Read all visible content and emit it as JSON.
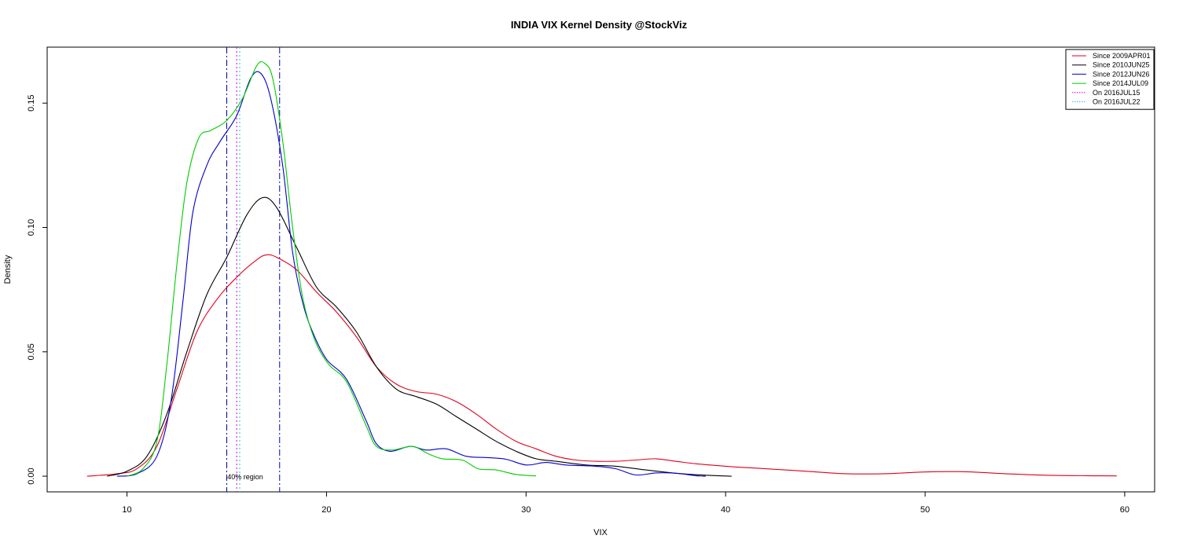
{
  "chart_data": {
    "type": "line",
    "title": "INDIA VIX Kernel Density @StockViz",
    "xlabel": "VIX",
    "ylabel": "Density",
    "xlim": [
      6,
      61.5
    ],
    "ylim": [
      -0.0063,
      0.1725
    ],
    "x_ticks": [
      10,
      20,
      30,
      40,
      50,
      60
    ],
    "x_tick_labels": [
      "10",
      "20",
      "30",
      "40",
      "50",
      "60"
    ],
    "y_ticks": [
      0,
      0.05,
      0.1,
      0.15
    ],
    "y_tick_labels": [
      "0.00",
      "0.05",
      "0.10",
      "0.15"
    ],
    "grid": false,
    "legend_position": "top-right",
    "series": [
      {
        "name": "Since 2009APR01",
        "color": "#e0001b",
        "dash": "solid",
        "points": [
          [
            8,
            0
          ],
          [
            9.5,
            0.001
          ],
          [
            10.5,
            0.003
          ],
          [
            11.5,
            0.012
          ],
          [
            12.5,
            0.035
          ],
          [
            13.5,
            0.058
          ],
          [
            14.5,
            0.071
          ],
          [
            15.5,
            0.08
          ],
          [
            16.5,
            0.087
          ],
          [
            17,
            0.089
          ],
          [
            17.5,
            0.088
          ],
          [
            18.5,
            0.083
          ],
          [
            19.5,
            0.074
          ],
          [
            20.5,
            0.066
          ],
          [
            21.5,
            0.056
          ],
          [
            22.5,
            0.044
          ],
          [
            23.5,
            0.037
          ],
          [
            24.5,
            0.034
          ],
          [
            25.5,
            0.033
          ],
          [
            26.5,
            0.03
          ],
          [
            27.5,
            0.025
          ],
          [
            28.5,
            0.019
          ],
          [
            29.5,
            0.014
          ],
          [
            30.5,
            0.011
          ],
          [
            31.5,
            0.008
          ],
          [
            32.5,
            0.0065
          ],
          [
            33.5,
            0.006
          ],
          [
            34.5,
            0.006
          ],
          [
            35.5,
            0.0065
          ],
          [
            36.5,
            0.007
          ],
          [
            37.5,
            0.006
          ],
          [
            38.5,
            0.005
          ],
          [
            40,
            0.004
          ],
          [
            42,
            0.003
          ],
          [
            44,
            0.002
          ],
          [
            46,
            0.001
          ],
          [
            48,
            0.001
          ],
          [
            50,
            0.0017
          ],
          [
            52,
            0.0018
          ],
          [
            54,
            0.001
          ],
          [
            56,
            0.0004
          ],
          [
            58,
            0.0002
          ],
          [
            59.6,
            0.0001
          ]
        ]
      },
      {
        "name": "Since 2010JUN25",
        "color": "#000000",
        "dash": "solid",
        "points": [
          [
            9,
            0
          ],
          [
            10,
            0.002
          ],
          [
            11,
            0.008
          ],
          [
            12,
            0.025
          ],
          [
            13,
            0.05
          ],
          [
            14,
            0.073
          ],
          [
            15,
            0.088
          ],
          [
            16,
            0.105
          ],
          [
            16.8,
            0.112
          ],
          [
            17.5,
            0.108
          ],
          [
            18.5,
            0.092
          ],
          [
            19.5,
            0.076
          ],
          [
            20.5,
            0.068
          ],
          [
            21.5,
            0.058
          ],
          [
            22.5,
            0.044
          ],
          [
            23.5,
            0.035
          ],
          [
            24.5,
            0.032
          ],
          [
            25.5,
            0.029
          ],
          [
            26.5,
            0.024
          ],
          [
            27.5,
            0.019
          ],
          [
            28.5,
            0.014
          ],
          [
            29.5,
            0.01
          ],
          [
            30.5,
            0.007
          ],
          [
            31.5,
            0.006
          ],
          [
            33,
            0.0045
          ],
          [
            34.5,
            0.004
          ],
          [
            36,
            0.0025
          ],
          [
            37.5,
            0.0012
          ],
          [
            39,
            0.0004
          ],
          [
            40.3,
            0
          ]
        ]
      },
      {
        "name": "Since 2012JUN26",
        "color": "#0000cc",
        "dash": "solid",
        "points": [
          [
            9.5,
            0
          ],
          [
            10.5,
            0.001
          ],
          [
            11.5,
            0.008
          ],
          [
            12.2,
            0.03
          ],
          [
            12.8,
            0.07
          ],
          [
            13.3,
            0.106
          ],
          [
            14,
            0.125
          ],
          [
            14.7,
            0.135
          ],
          [
            15.5,
            0.145
          ],
          [
            16.2,
            0.16
          ],
          [
            16.7,
            0.162
          ],
          [
            17.2,
            0.152
          ],
          [
            17.8,
            0.125
          ],
          [
            18.3,
            0.09
          ],
          [
            18.8,
            0.07
          ],
          [
            19.3,
            0.058
          ],
          [
            20,
            0.047
          ],
          [
            21,
            0.039
          ],
          [
            22,
            0.022
          ],
          [
            22.5,
            0.013
          ],
          [
            23.2,
            0.01
          ],
          [
            24.2,
            0.012
          ],
          [
            25,
            0.0105
          ],
          [
            26,
            0.011
          ],
          [
            27,
            0.008
          ],
          [
            28,
            0.0075
          ],
          [
            29,
            0.0068
          ],
          [
            30,
            0.0045
          ],
          [
            31,
            0.0055
          ],
          [
            32,
            0.0045
          ],
          [
            33.5,
            0.004
          ],
          [
            34.5,
            0.003
          ],
          [
            35.5,
            0.0005
          ],
          [
            36.5,
            0.0013
          ],
          [
            37.5,
            0.0012
          ],
          [
            38.5,
            0.0002
          ],
          [
            39,
            0
          ]
        ]
      },
      {
        "name": "Since 2014JUL09",
        "color": "#00cc00",
        "dash": "solid",
        "points": [
          [
            10,
            0
          ],
          [
            10.8,
            0.003
          ],
          [
            11.5,
            0.014
          ],
          [
            12,
            0.045
          ],
          [
            12.5,
            0.085
          ],
          [
            13,
            0.118
          ],
          [
            13.6,
            0.136
          ],
          [
            14.2,
            0.139
          ],
          [
            15,
            0.143
          ],
          [
            15.8,
            0.152
          ],
          [
            16.5,
            0.165
          ],
          [
            16.9,
            0.166
          ],
          [
            17.3,
            0.16
          ],
          [
            17.8,
            0.135
          ],
          [
            18.3,
            0.1
          ],
          [
            18.8,
            0.072
          ],
          [
            19.4,
            0.055
          ],
          [
            20.1,
            0.045
          ],
          [
            21,
            0.038
          ],
          [
            22,
            0.02
          ],
          [
            22.5,
            0.012
          ],
          [
            23.3,
            0.0105
          ],
          [
            24.3,
            0.012
          ],
          [
            25.1,
            0.009
          ],
          [
            25.8,
            0.007
          ],
          [
            26.8,
            0.0065
          ],
          [
            27.6,
            0.003
          ],
          [
            28.5,
            0.0025
          ],
          [
            29.5,
            0.0007
          ],
          [
            30.5,
            0.0001
          ]
        ]
      }
    ],
    "vlines": [
      {
        "x": 15.0,
        "color": "#000080",
        "dash": "dashdot"
      },
      {
        "x": 17.65,
        "color": "#0000cc",
        "dash": "dashdot"
      },
      {
        "x": 15.5,
        "color": "#cc00cc",
        "dash": "dotted"
      },
      {
        "x": 15.65,
        "color": "#33bbee",
        "dash": "dotted"
      }
    ],
    "legend": [
      {
        "label": "Since 2009APR01",
        "color": "#e0001b",
        "dash": "solid"
      },
      {
        "label": "Since 2010JUN25",
        "color": "#000000",
        "dash": "solid"
      },
      {
        "label": "Since 2012JUN26",
        "color": "#0000cc",
        "dash": "solid"
      },
      {
        "label": "Since 2014JUL09",
        "color": "#00cc00",
        "dash": "solid"
      },
      {
        "label": "On 2016JUL15",
        "color": "#cc00cc",
        "dash": "dotted"
      },
      {
        "label": "On 2016JUL22",
        "color": "#33bbee",
        "dash": "dotted"
      }
    ],
    "annotations": [
      {
        "text": "40% region",
        "x": 16.4,
        "y": 0
      }
    ]
  }
}
